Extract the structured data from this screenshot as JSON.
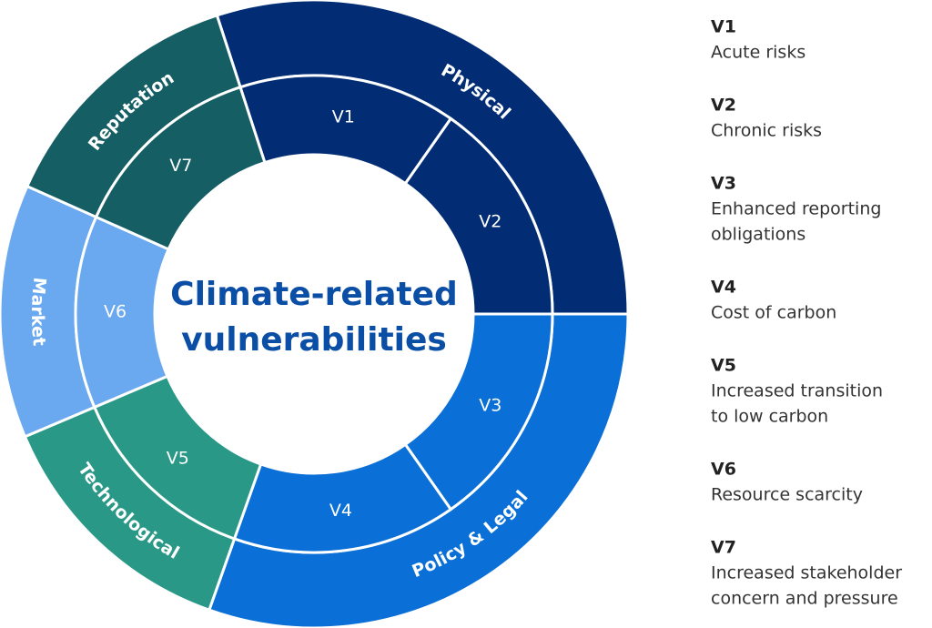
{
  "title_lines": [
    "Climate-related",
    "vulnerabilities"
  ],
  "categories": [
    {
      "label": "Physical",
      "color": "#022d75",
      "items": [
        {
          "id": "V1"
        },
        {
          "id": "V2"
        }
      ]
    },
    {
      "label": "Policy & Legal",
      "color": "#0a6fd6",
      "items": [
        {
          "id": "V3"
        },
        {
          "id": "V4"
        }
      ]
    },
    {
      "label": "Technological",
      "color": "#2a9886",
      "items": [
        {
          "id": "V5"
        }
      ]
    },
    {
      "label": "Market",
      "color": "#6aa9ef",
      "items": [
        {
          "id": "V6"
        }
      ]
    },
    {
      "label": "Reputation",
      "color": "#155e64",
      "items": [
        {
          "id": "V7"
        }
      ]
    }
  ],
  "legend": [
    {
      "id": "V1",
      "lines": [
        "Acute risks"
      ]
    },
    {
      "id": "V2",
      "lines": [
        "Chronic risks"
      ]
    },
    {
      "id": "V3",
      "lines": [
        "Enhanced reporting",
        "obligations"
      ]
    },
    {
      "id": "V4",
      "lines": [
        "Cost of carbon"
      ]
    },
    {
      "id": "V5",
      "lines": [
        "Increased transition",
        "to low carbon"
      ]
    },
    {
      "id": "V6",
      "lines": [
        "Resource scarcity"
      ]
    },
    {
      "id": "V7",
      "lines": [
        "Increased stakeholder",
        "concern and pressure"
      ]
    }
  ]
}
